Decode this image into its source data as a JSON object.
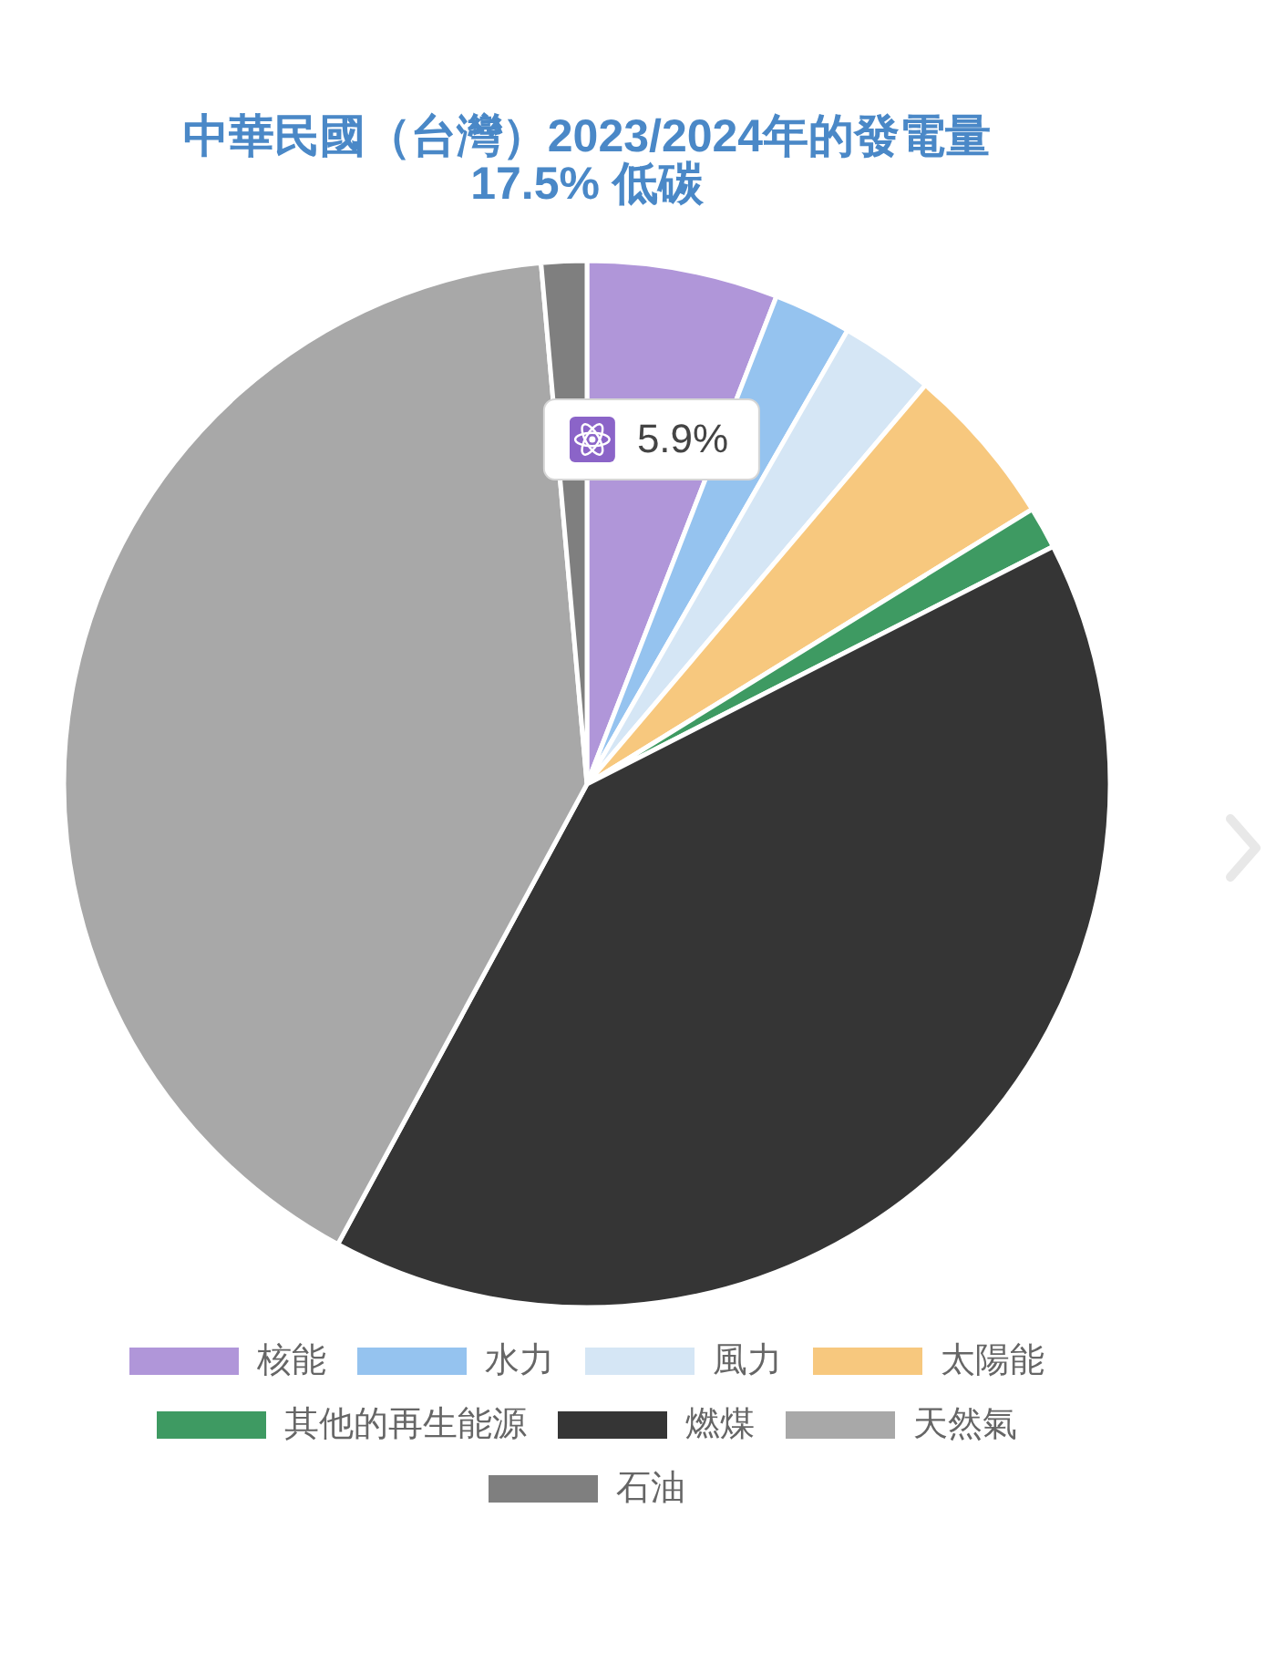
{
  "chart_data": {
    "type": "pie",
    "title": "中華民國（台灣）2023/2024年的發電量",
    "subtitle": "17.5% 低碳",
    "categories": [
      "核能",
      "水力",
      "風力",
      "太陽能",
      "其他的再生能源",
      "燃煤",
      "天然氣",
      "石油"
    ],
    "values": [
      5.9,
      2.4,
      2.9,
      5.0,
      1.3,
      40.4,
      40.7,
      1.4
    ],
    "colors": [
      "#b096d9",
      "#95c3ef",
      "#d5e6f5",
      "#f7c87e",
      "#3e9a62",
      "#353535",
      "#a8a8a8",
      "#7f7f7f"
    ],
    "value_labels": [
      "5.9%",
      null,
      null,
      null,
      null,
      null,
      null,
      null
    ],
    "legend": "bottom"
  }
}
